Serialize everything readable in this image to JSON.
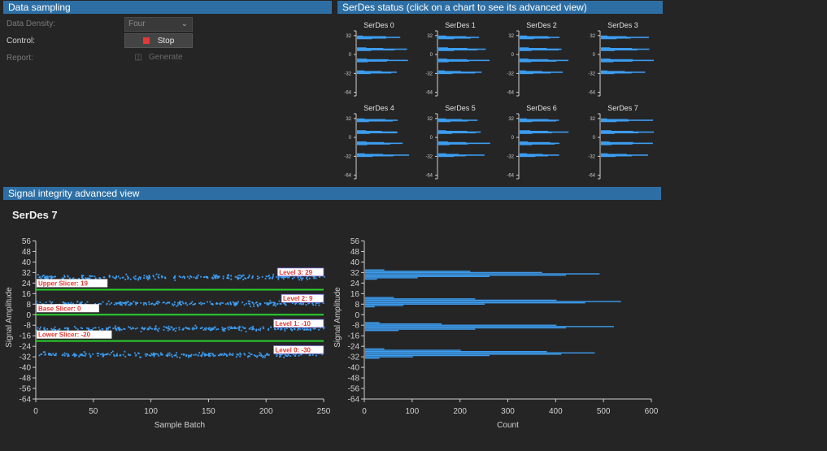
{
  "sampling": {
    "header": "Data sampling",
    "density_label": "Data Density:",
    "density_value": "Four",
    "control_label": "Control:",
    "stop_label": "Stop",
    "report_label": "Report:",
    "generate_label": "Generate"
  },
  "status": {
    "header": "SerDes status (click on a chart to see its advanced view)",
    "charts": [
      {
        "name": "SerDes 0"
      },
      {
        "name": "SerDes 1"
      },
      {
        "name": "SerDes 2"
      },
      {
        "name": "SerDes 3"
      },
      {
        "name": "SerDes 4"
      },
      {
        "name": "SerDes 5"
      },
      {
        "name": "SerDes 6"
      },
      {
        "name": "SerDes 7"
      }
    ],
    "mini_ticks": [
      "32",
      "0",
      "-32",
      "-64"
    ]
  },
  "advanced": {
    "header": "Signal integrity advanced view",
    "title": "SerDes 7",
    "colors": {
      "data": "#3d9df0",
      "slicer": "#2bd12b",
      "label": "#e53935"
    },
    "scatter": {
      "xlabel": "Sample Batch",
      "ylabel": "Signal Amplitude",
      "xlim": [
        0,
        250
      ],
      "ylim": [
        -64,
        60
      ],
      "xticks": [
        0,
        50,
        100,
        150,
        200,
        250
      ],
      "yticks": [
        56,
        48,
        40,
        32,
        24,
        16,
        8,
        0,
        -8,
        -16,
        -24,
        -32,
        -40,
        -48,
        -56,
        -64
      ],
      "levels": [
        {
          "label": "Level 3: 29",
          "value": 29
        },
        {
          "label": "Level 2: 9",
          "value": 9
        },
        {
          "label": "Level 1: -10",
          "value": -10
        },
        {
          "label": "Level 0: -30",
          "value": -30
        }
      ],
      "slicers": [
        {
          "label": "Upper Slicer: 19",
          "value": 19
        },
        {
          "label": "Base Slicer: 0",
          "value": 0
        },
        {
          "label": "Lower Slicer: -20",
          "value": -20
        }
      ]
    },
    "histogram": {
      "xlabel": "Count",
      "ylabel": "Signal Amplitude",
      "xlim": [
        0,
        600
      ],
      "ylim": [
        -64,
        60
      ],
      "xticks": [
        0,
        100,
        200,
        300,
        400,
        500,
        600
      ],
      "yticks": [
        56,
        48,
        40,
        32,
        24,
        16,
        8,
        0,
        -8,
        -16,
        -24,
        -32,
        -40,
        -48,
        -56,
        -64
      ],
      "bins": [
        {
          "y": 34,
          "count": 40
        },
        {
          "y": 33,
          "count": 220
        },
        {
          "y": 32,
          "count": 370
        },
        {
          "y": 31,
          "count": 490
        },
        {
          "y": 30,
          "count": 420
        },
        {
          "y": 29,
          "count": 260
        },
        {
          "y": 28,
          "count": 110
        },
        {
          "y": 27,
          "count": 25
        },
        {
          "y": 13,
          "count": 60
        },
        {
          "y": 12,
          "count": 230
        },
        {
          "y": 11,
          "count": 400
        },
        {
          "y": 10,
          "count": 535
        },
        {
          "y": 9,
          "count": 460
        },
        {
          "y": 8,
          "count": 250
        },
        {
          "y": 7,
          "count": 80
        },
        {
          "y": 6,
          "count": 20
        },
        {
          "y": -6,
          "count": 30
        },
        {
          "y": -7,
          "count": 160
        },
        {
          "y": -8,
          "count": 400
        },
        {
          "y": -9,
          "count": 520
        },
        {
          "y": -10,
          "count": 420
        },
        {
          "y": -11,
          "count": 230
        },
        {
          "y": -12,
          "count": 70
        },
        {
          "y": -26,
          "count": 40
        },
        {
          "y": -27,
          "count": 200
        },
        {
          "y": -28,
          "count": 380
        },
        {
          "y": -29,
          "count": 480
        },
        {
          "y": -30,
          "count": 410
        },
        {
          "y": -31,
          "count": 260
        },
        {
          "y": -32,
          "count": 100
        },
        {
          "y": -33,
          "count": 30
        }
      ]
    }
  }
}
